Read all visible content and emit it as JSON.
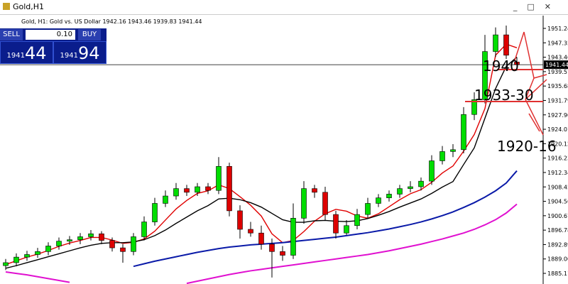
{
  "chart_data": {
    "type": "candlestick",
    "title": "Gold,H1",
    "subtitle": "Gold, H1:  Gold vs. US Dollar  1942.16 1943.46 1939.83 1941.44",
    "up_color": "#00dd00",
    "down_color": "#dd0000",
    "open": [
      1887.2,
      1888.0,
      1889.5,
      1890.2,
      1891.0,
      1892.5,
      1893.8,
      1894.2,
      1895.0,
      1895.8,
      1894.0,
      1892.0,
      1891.0,
      1895.0,
      1899.0,
      1904.0,
      1906.0,
      1908.0,
      1907.0,
      1908.5,
      1907.5,
      1914.0,
      1902.0,
      1897.0,
      1896.0,
      1893.0,
      1891.0,
      1890.0,
      1900.0,
      1908.0,
      1907.0,
      1901.0,
      1896.0,
      1898.0,
      1901.0,
      1904.0,
      1905.5,
      1906.5,
      1908.0,
      1908.5,
      1910.0,
      1915.5,
      1918.0,
      1918.5,
      1928.0,
      1932.0,
      1945.0,
      1949.5,
      1942.16
    ],
    "high": [
      1889.0,
      1890.5,
      1891.2,
      1892.0,
      1893.5,
      1894.8,
      1895.2,
      1896.0,
      1896.8,
      1896.5,
      1894.8,
      1893.0,
      1896.0,
      1900.5,
      1905.5,
      1907.5,
      1909.5,
      1909.0,
      1909.5,
      1909.5,
      1916.5,
      1915.0,
      1903.5,
      1899.0,
      1898.0,
      1894.5,
      1892.5,
      1904.0,
      1910.0,
      1909.0,
      1908.5,
      1902.0,
      1899.5,
      1902.5,
      1905.5,
      1906.5,
      1907.5,
      1909.0,
      1910.0,
      1911.0,
      1917.0,
      1919.5,
      1920.0,
      1930.0,
      1934.0,
      1949.5,
      1951.5,
      1952.0,
      1943.46
    ],
    "low": [
      1886.0,
      1887.0,
      1888.5,
      1889.3,
      1890.0,
      1891.5,
      1892.8,
      1893.0,
      1894.0,
      1893.0,
      1891.0,
      1888.0,
      1890.0,
      1894.0,
      1898.0,
      1903.0,
      1905.0,
      1906.0,
      1906.0,
      1906.5,
      1906.5,
      1900.5,
      1894.5,
      1895.0,
      1891.5,
      1884.0,
      1888.5,
      1889.0,
      1898.5,
      1905.5,
      1899.5,
      1894.5,
      1895.5,
      1897.0,
      1900.0,
      1903.0,
      1904.5,
      1905.5,
      1907.0,
      1907.5,
      1909.0,
      1914.5,
      1916.5,
      1917.5,
      1926.5,
      1931.0,
      1943.5,
      1943.0,
      1939.83
    ],
    "close": [
      1888.0,
      1889.5,
      1890.2,
      1891.0,
      1892.5,
      1893.8,
      1894.2,
      1895.0,
      1895.8,
      1894.0,
      1892.0,
      1891.0,
      1895.0,
      1899.0,
      1904.0,
      1906.0,
      1908.0,
      1907.0,
      1908.5,
      1907.5,
      1914.0,
      1902.0,
      1897.0,
      1896.0,
      1893.0,
      1891.0,
      1890.0,
      1900.0,
      1908.0,
      1907.0,
      1901.0,
      1896.0,
      1898.0,
      1901.0,
      1904.0,
      1905.5,
      1906.5,
      1908.0,
      1908.5,
      1910.0,
      1915.5,
      1918.0,
      1918.5,
      1928.0,
      1932.0,
      1945.0,
      1949.5,
      1944.0,
      1941.44
    ],
    "lines": [
      {
        "color": "#e00000",
        "values": [
          1887.5,
          1888.5,
          1889.5,
          1890.3,
          1891.3,
          1892.4,
          1893.3,
          1894.0,
          1894.8,
          1894.8,
          1894.1,
          1893.2,
          1893.5,
          1894.4,
          1896.5,
          1899.5,
          1902.5,
          1904.8,
          1906.7,
          1907.4,
          1909.0,
          1908.0,
          1905.8,
          1903.5,
          1900.6,
          1895.8,
          1893.4,
          1894.0,
          1896.4,
          1899.2,
          1901.2,
          1902.4,
          1901.9,
          1900.6,
          1900.0,
          1901.2,
          1903.1,
          1905.0,
          1906.6,
          1907.7,
          1909.7,
          1912.2,
          1914.1,
          1918.1,
          1922.6,
          1929.6,
          1944.0,
          1947.0,
          1946.0
        ]
      },
      {
        "color": "#000000",
        "values": [
          1886.5,
          1887.2,
          1888.0,
          1888.8,
          1889.6,
          1890.4,
          1891.2,
          1892.0,
          1892.7,
          1893.2,
          1893.4,
          1893.4,
          1893.6,
          1894.2,
          1895.3,
          1896.8,
          1898.6,
          1900.3,
          1902.0,
          1903.4,
          1905.2,
          1905.4,
          1905.0,
          1904.2,
          1903.0,
          1901.3,
          1899.6,
          1898.9,
          1898.9,
          1899.3,
          1899.4,
          1899.2,
          1899.1,
          1899.3,
          1899.9,
          1900.8,
          1901.8,
          1903.0,
          1904.1,
          1905.2,
          1906.7,
          1908.4,
          1909.9,
          1914.5,
          1919.0,
          1927.0,
          1935.0,
          1941.0,
          1943.5
        ]
      },
      {
        "color": "#0a1aa8",
        "values": [
          null,
          null,
          null,
          null,
          null,
          null,
          null,
          null,
          null,
          null,
          null,
          null,
          1887.0,
          1887.7,
          1888.4,
          1889.0,
          1889.6,
          1890.2,
          1890.8,
          1891.3,
          1891.8,
          1892.2,
          1892.5,
          1892.8,
          1893.0,
          1893.2,
          1893.4,
          1893.7,
          1894.0,
          1894.3,
          1894.6,
          1894.9,
          1895.3,
          1895.7,
          1896.1,
          1896.6,
          1897.1,
          1897.7,
          1898.3,
          1899.0,
          1899.8,
          1900.7,
          1901.7,
          1902.9,
          1904.2,
          1905.7,
          1907.4,
          1909.5,
          1912.8
        ]
      },
      {
        "color": "#e010d0",
        "values": [
          1885.5,
          1885.1,
          1884.7,
          1884.2,
          1883.7,
          1883.2,
          1882.7,
          null,
          null,
          null,
          null,
          null,
          null,
          null,
          null,
          null,
          null,
          1882.4,
          1883.0,
          1883.6,
          1884.2,
          1884.8,
          1885.3,
          1885.8,
          1886.2,
          1886.6,
          1887.0,
          1887.4,
          1887.8,
          1888.2,
          1888.6,
          1889.0,
          1889.4,
          1889.8,
          1890.2,
          1890.7,
          1891.2,
          1891.8,
          1892.4,
          1893.0,
          1893.7,
          1894.4,
          1895.2,
          1896.0,
          1897.0,
          1898.2,
          1899.6,
          1901.4,
          1903.8
        ]
      }
    ],
    "last_price": 1941.44,
    "ylim": [
      1882.24,
      1953.54
    ],
    "yticks": [
      1951.24,
      1947.35,
      1943.46,
      1939.57,
      1935.68,
      1931.79,
      {
        "value": 1927.9,
        "label": "1927.90"
      },
      1924.01,
      1920.12,
      1916.23,
      1912.34,
      1908.45,
      1904.56,
      1900.67,
      1896.78,
      1892.89,
      {
        "value": 1889,
        "label": "1889.00"
      },
      1885.11
    ],
    "annotations": [
      "1940",
      "1933-30",
      "1920-16"
    ]
  },
  "trade_panel": {
    "sell": "SELL",
    "lot": "0.10",
    "buy": "BUY",
    "sell_big": "1941",
    "sell_pips": "44",
    "buy_big": "1941",
    "buy_pips": "94"
  }
}
